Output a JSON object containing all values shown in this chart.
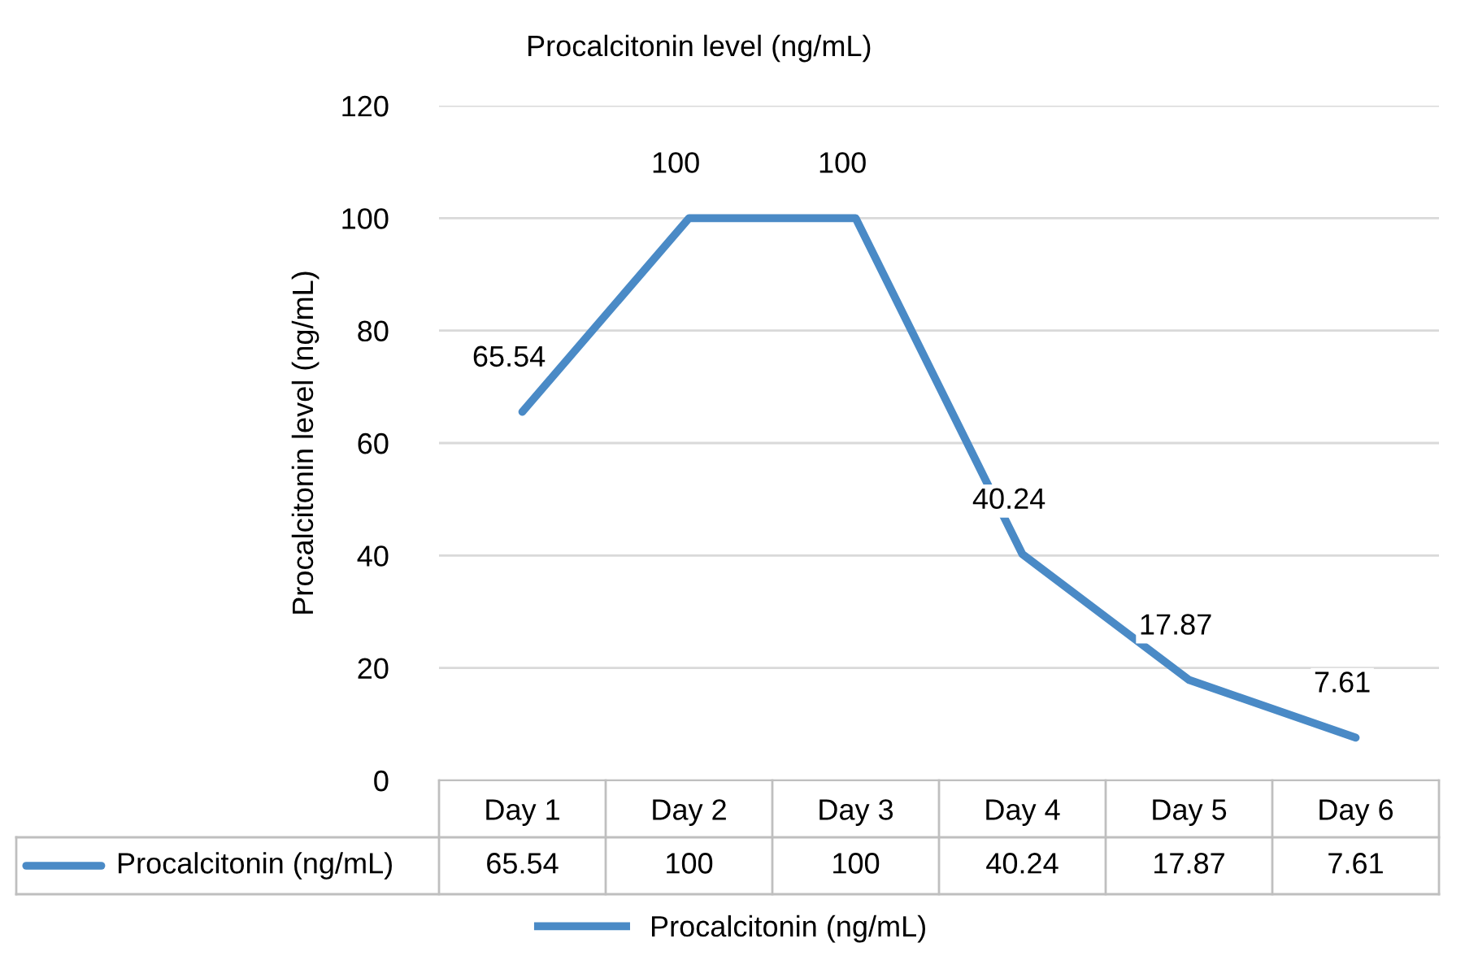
{
  "chart_data": {
    "type": "line",
    "title": "Procalcitonin level (ng/mL)",
    "ylabel": "Procalcitonin level (ng/mL)",
    "categories": [
      "Day 1",
      "Day 2",
      "Day 3",
      "Day 4",
      "Day 5",
      "Day 6"
    ],
    "series": [
      {
        "name": "Procalcitonin (ng/mL)",
        "color": "#4a8ac6",
        "values": [
          65.54,
          100,
          100,
          40.24,
          17.87,
          7.61
        ],
        "value_labels": [
          "65.54",
          "100",
          "100",
          "40.24",
          "17.87",
          "7.61"
        ]
      }
    ],
    "ylim": [
      0,
      120
    ],
    "yticks": [
      0,
      20,
      40,
      60,
      80,
      100,
      120
    ],
    "annotations": [
      "65.54",
      "100",
      "100",
      "40.24",
      "17.87",
      "7.61"
    ],
    "grid": "y",
    "legend": "bottom",
    "marker": "none",
    "line_style": "solid"
  }
}
